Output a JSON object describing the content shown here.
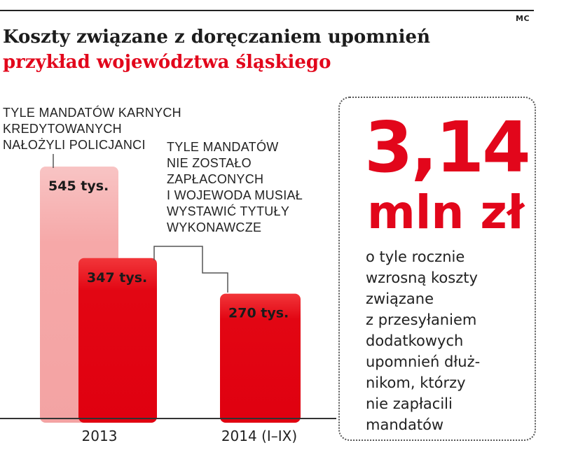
{
  "credit": "MC",
  "title": "Koszty związane z doręczaniem upomnień",
  "subtitle": "przykład województwa śląskiego",
  "colors": {
    "accent": "#e2061b",
    "bar_light": "#f7b5b5",
    "bar_main": "#e20613",
    "text": "#222222"
  },
  "annotations": {
    "issued_lines": [
      "TYLE MANDATÓW KARNYCH",
      "KREDYTOWANYCH",
      "NAŁOŻYLI POLICJANCI"
    ],
    "unpaid_lines": [
      "TYLE MANDATÓW",
      "NIE ZOSTAŁO",
      "ZAPŁACONYCH",
      "I WOJEWODA MUSIAŁ",
      "WYSTAWIĆ TYTUŁY",
      "WYKONAWCZE"
    ]
  },
  "highlight": {
    "value": "3,14",
    "unit": "mln zł",
    "description_lines": [
      "o tyle rocznie",
      "wzrosną koszty",
      "związane",
      "z przesyłaniem",
      "dodatkowych",
      "upomnień dłuż-",
      "nikom, którzy",
      "nie zapłacili",
      "mandatów"
    ]
  },
  "chart_data": {
    "type": "bar",
    "categories": [
      "2013",
      "2014 (I–IX)"
    ],
    "series": [
      {
        "values": [
          545,
          null
        ],
        "labels": [
          "545 tys.",
          ""
        ]
      },
      {
        "values": [
          347,
          270
        ],
        "labels": [
          "347 tys.",
          "270 tys."
        ]
      }
    ],
    "unit": "tys.",
    "grid": false,
    "legend": "none"
  }
}
